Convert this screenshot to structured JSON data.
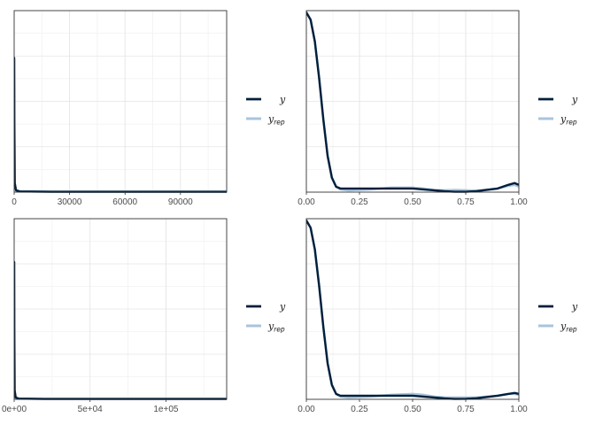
{
  "chart_data": [
    {
      "type": "line",
      "title": "",
      "xlabel": "",
      "ylabel": "",
      "xlim": [
        0,
        115000
      ],
      "ylim": [
        0,
        1.0
      ],
      "grid": true,
      "x_ticks": [
        0,
        30000,
        60000,
        90000
      ],
      "x_tick_labels": [
        "0",
        "30000",
        "60000",
        "90000"
      ],
      "legend_position": "right",
      "legend": [
        {
          "label": "y",
          "sub": ""
        },
        {
          "label": "y",
          "sub": "rep"
        }
      ],
      "series": [
        {
          "name": "y_rep",
          "color": "#a8c4dc",
          "x": [
            0,
            80,
            300,
            1000,
            3000,
            20000,
            115000
          ],
          "y": [
            0.73,
            0.4,
            0.05,
            0.01,
            0.004,
            0.002,
            0.002
          ]
        },
        {
          "name": "y",
          "color": "#011f3b",
          "x": [
            0,
            80,
            300,
            1000,
            3000,
            20000,
            115000
          ],
          "y": [
            0.74,
            0.4,
            0.05,
            0.01,
            0.004,
            0.002,
            0.002
          ]
        }
      ]
    },
    {
      "type": "line",
      "title": "",
      "xlabel": "",
      "ylabel": "",
      "xlim": [
        0,
        1
      ],
      "ylim": [
        0,
        1.0
      ],
      "grid": true,
      "x_ticks": [
        0,
        0.25,
        0.5,
        0.75,
        1.0
      ],
      "x_tick_labels": [
        "0.00",
        "0.25",
        "0.50",
        "0.75",
        "1.00"
      ],
      "legend_position": "right",
      "legend": [
        {
          "label": "y",
          "sub": ""
        },
        {
          "label": "y",
          "sub": "rep"
        }
      ],
      "series": [
        {
          "name": "y_rep",
          "color": "#a8c4dc",
          "x": [
            0,
            0.02,
            0.04,
            0.06,
            0.08,
            0.1,
            0.12,
            0.14,
            0.16,
            0.2,
            0.3,
            0.4,
            0.5,
            0.55,
            0.6,
            0.65,
            0.7,
            0.75,
            0.8,
            0.9,
            0.95,
            0.98,
            1.0
          ],
          "y": [
            0.99,
            0.95,
            0.83,
            0.63,
            0.4,
            0.2,
            0.08,
            0.03,
            0.015,
            0.01,
            0.015,
            0.025,
            0.025,
            0.02,
            0.012,
            0.01,
            0.012,
            0.01,
            0.008,
            0.02,
            0.035,
            0.04,
            0.03
          ]
        },
        {
          "name": "y",
          "color": "#011f3b",
          "x": [
            0,
            0.02,
            0.04,
            0.06,
            0.08,
            0.1,
            0.12,
            0.14,
            0.16,
            0.2,
            0.3,
            0.4,
            0.5,
            0.55,
            0.6,
            0.65,
            0.7,
            0.75,
            0.8,
            0.9,
            0.95,
            0.98,
            1.0
          ],
          "y": [
            0.99,
            0.95,
            0.83,
            0.63,
            0.4,
            0.2,
            0.08,
            0.03,
            0.02,
            0.02,
            0.02,
            0.02,
            0.02,
            0.015,
            0.01,
            0.005,
            0.002,
            0.002,
            0.005,
            0.02,
            0.04,
            0.05,
            0.04
          ]
        }
      ]
    },
    {
      "type": "line",
      "title": "",
      "xlabel": "",
      "ylabel": "",
      "xlim": [
        0,
        140000
      ],
      "ylim": [
        0,
        1.0
      ],
      "grid": true,
      "x_ticks": [
        0,
        50000,
        100000
      ],
      "x_tick_labels": [
        "0e+00",
        "5e+04",
        "1e+05"
      ],
      "legend_position": "right",
      "legend": [
        {
          "label": "y",
          "sub": ""
        },
        {
          "label": "y",
          "sub": "rep"
        }
      ],
      "series": [
        {
          "name": "y_rep",
          "color": "#a8c4dc",
          "x": [
            0,
            80,
            300,
            1000,
            3000,
            20000,
            140000
          ],
          "y": [
            0.76,
            0.4,
            0.05,
            0.01,
            0.004,
            0.002,
            0.002
          ]
        },
        {
          "name": "y",
          "color": "#011f3b",
          "x": [
            0,
            80,
            300,
            1000,
            3000,
            20000,
            140000
          ],
          "y": [
            0.76,
            0.4,
            0.05,
            0.01,
            0.004,
            0.002,
            0.002
          ]
        }
      ]
    },
    {
      "type": "line",
      "title": "",
      "xlabel": "",
      "ylabel": "",
      "xlim": [
        0,
        1
      ],
      "ylim": [
        0,
        1.0
      ],
      "grid": true,
      "x_ticks": [
        0,
        0.25,
        0.5,
        0.75,
        1.0
      ],
      "x_tick_labels": [
        "0.00",
        "0.25",
        "0.50",
        "0.75",
        "1.00"
      ],
      "legend_position": "right",
      "legend": [
        {
          "label": "y",
          "sub": ""
        },
        {
          "label": "y",
          "sub": "rep"
        }
      ],
      "series": [
        {
          "name": "y_rep",
          "color": "#a8c4dc",
          "x": [
            0,
            0.02,
            0.04,
            0.06,
            0.08,
            0.1,
            0.12,
            0.14,
            0.16,
            0.2,
            0.3,
            0.4,
            0.5,
            0.55,
            0.6,
            0.65,
            0.7,
            0.75,
            0.8,
            0.9,
            0.95,
            0.98,
            1.0
          ],
          "y": [
            0.99,
            0.95,
            0.83,
            0.63,
            0.4,
            0.2,
            0.08,
            0.03,
            0.015,
            0.01,
            0.015,
            0.025,
            0.03,
            0.025,
            0.015,
            0.01,
            0.01,
            0.01,
            0.01,
            0.02,
            0.03,
            0.03,
            0.025
          ]
        },
        {
          "name": "y",
          "color": "#011f3b",
          "x": [
            0,
            0.02,
            0.04,
            0.06,
            0.08,
            0.1,
            0.12,
            0.14,
            0.16,
            0.2,
            0.3,
            0.4,
            0.5,
            0.55,
            0.6,
            0.65,
            0.7,
            0.75,
            0.8,
            0.9,
            0.95,
            0.98,
            1.0
          ],
          "y": [
            0.99,
            0.95,
            0.83,
            0.63,
            0.4,
            0.2,
            0.08,
            0.03,
            0.02,
            0.02,
            0.02,
            0.02,
            0.02,
            0.015,
            0.01,
            0.005,
            0.002,
            0.003,
            0.006,
            0.02,
            0.03,
            0.035,
            0.03
          ]
        }
      ]
    }
  ]
}
